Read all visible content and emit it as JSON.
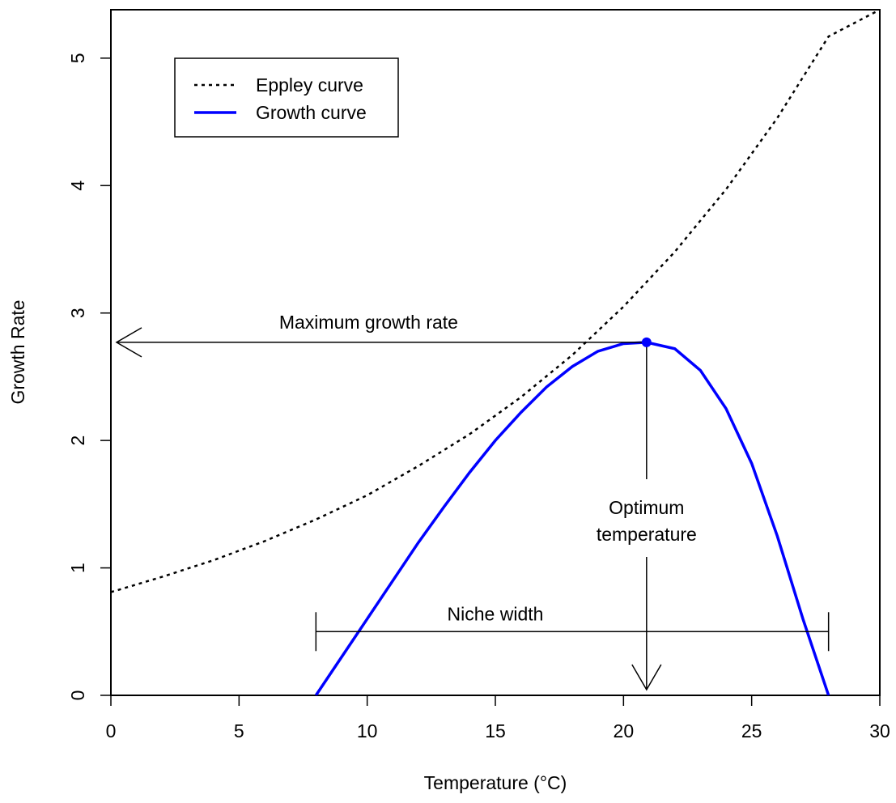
{
  "chart_data": {
    "type": "line",
    "xlabel": "Temperature (°C)",
    "ylabel": "Growth Rate",
    "xlim": [
      0,
      30
    ],
    "ylim": [
      0,
      5.38
    ],
    "x_ticks": [
      0,
      5,
      10,
      15,
      20,
      25,
      30
    ],
    "y_ticks": [
      0,
      1,
      2,
      3,
      4,
      5
    ],
    "grid": false,
    "legend_position": "top-left",
    "series": [
      {
        "name": "Eppley curve",
        "style": "dotted",
        "color": "#000000",
        "x": [
          0,
          2,
          4,
          6,
          8,
          10,
          12,
          14,
          16,
          18,
          20,
          22,
          24,
          26,
          28,
          30
        ],
        "y": [
          0.81,
          0.93,
          1.06,
          1.21,
          1.38,
          1.57,
          1.8,
          2.05,
          2.34,
          2.67,
          3.05,
          3.48,
          3.97,
          4.53,
          5.17,
          5.38
        ]
      },
      {
        "name": "Growth curve",
        "style": "solid",
        "color": "#0000ff",
        "x": [
          8,
          9,
          10,
          11,
          12,
          13,
          14,
          15,
          16,
          17,
          18,
          19,
          20,
          20.9,
          22,
          23,
          24,
          25,
          26,
          27,
          28
        ],
        "y": [
          0,
          0.3,
          0.6,
          0.9,
          1.2,
          1.48,
          1.75,
          2.0,
          2.22,
          2.42,
          2.58,
          2.7,
          2.76,
          2.77,
          2.72,
          2.55,
          2.25,
          1.82,
          1.25,
          0.6,
          0
        ]
      }
    ],
    "optimum_point": {
      "x": 20.9,
      "y": 2.77,
      "color": "#0000ff"
    },
    "annotations": {
      "max_growth": {
        "label": "Maximum growth rate",
        "y": 2.77,
        "x_from": 20.9,
        "x_to": 0
      },
      "optimum": {
        "label_line1": "Optimum",
        "label_line2": "temperature",
        "x": 20.9,
        "y_from": 2.77,
        "y_to": 0
      },
      "niche": {
        "label": "Niche width",
        "x_from": 8,
        "x_to": 28,
        "y": 0.5
      }
    }
  }
}
